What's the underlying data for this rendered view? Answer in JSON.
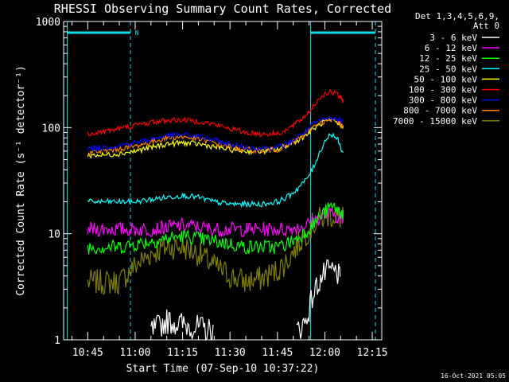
{
  "chart_data": {
    "type": "line",
    "title": "RHESSI Observing Summary Count Rates, Corrected",
    "ylabel": "Corrected Count Rate (s⁻¹ detector⁻¹)",
    "xlabel": "Start Time (07-Sep-10 10:37:22)",
    "yscale": "log",
    "ylim": [
      1,
      1000
    ],
    "xlim_minutes": [
      37.37,
      138.0
    ],
    "x_ticks": [
      "10:45",
      "11:00",
      "11:15",
      "11:30",
      "11:45",
      "12:00",
      "12:15"
    ],
    "x_tick_minutes": [
      45,
      60,
      75,
      90,
      105,
      120,
      135
    ],
    "y_ticks": [
      "1",
      "10",
      "100",
      "1000"
    ],
    "legend_header": [
      "Det 1,3,4,5,6,9,",
      "Att 0"
    ],
    "footer": "16-Oct-2021 05:05",
    "state_markers": {
      "flag_label": "N",
      "color": "#00e0e8",
      "dashed_lines_minutes": [
        58.5,
        136.0
      ],
      "solid_lines_minutes": [
        38.5,
        115.5
      ],
      "flag_bars_minutes": [
        [
          38.5,
          58.5
        ],
        [
          115.5,
          136.0
        ]
      ]
    },
    "x": [
      45,
      50,
      55,
      60,
      65,
      70,
      75,
      80,
      85,
      90,
      95,
      100,
      105,
      108,
      111,
      114,
      116,
      118,
      120,
      122,
      124,
      125,
      126
    ],
    "series": [
      {
        "name": "3 - 6 keV",
        "color": "#ffffff",
        "values": [
          null,
          null,
          null,
          null,
          1.2,
          1.5,
          1.4,
          1.3,
          1.2,
          null,
          null,
          null,
          null,
          null,
          1.2,
          1.5,
          2.5,
          3.5,
          4.2,
          4.5,
          4.2,
          3.5,
          null
        ]
      },
      {
        "name": "6 - 12 keV",
        "color": "#ff00ff",
        "values": [
          11,
          11,
          11,
          11,
          11,
          11.5,
          12,
          11.5,
          11,
          11,
          11,
          11,
          11,
          11,
          11.5,
          12,
          13,
          14,
          15,
          15.5,
          14.5,
          14,
          13
        ]
      },
      {
        "name": "12 - 25 keV",
        "color": "#00ff00",
        "values": [
          7.5,
          7.5,
          7.5,
          8,
          8.5,
          9,
          9.5,
          9,
          8.5,
          8,
          7.5,
          7.5,
          7.5,
          8,
          9,
          10.5,
          12,
          14,
          16,
          18,
          17,
          16,
          15
        ]
      },
      {
        "name": "25 - 50 keV",
        "color": "#00ffff",
        "values": [
          20,
          20,
          20,
          20,
          21,
          22,
          23,
          22,
          20,
          19,
          19,
          19,
          20,
          22,
          26,
          32,
          40,
          55,
          75,
          88,
          78,
          65,
          55
        ]
      },
      {
        "name": "50 - 100 keV",
        "color": "#ffff00",
        "values": [
          55,
          55,
          57,
          60,
          65,
          70,
          72,
          70,
          66,
          62,
          60,
          60,
          62,
          68,
          75,
          85,
          95,
          105,
          115,
          115,
          110,
          105,
          100
        ]
      },
      {
        "name": "100 - 300 keV",
        "color": "#ff0000",
        "values": [
          88,
          92,
          98,
          105,
          112,
          117,
          118,
          115,
          107,
          98,
          90,
          87,
          88,
          95,
          110,
          130,
          155,
          185,
          210,
          215,
          205,
          190,
          175
        ]
      },
      {
        "name": "300 - 800 keV",
        "color": "#0000ff",
        "values": [
          63,
          65,
          68,
          72,
          78,
          84,
          86,
          83,
          76,
          70,
          65,
          64,
          65,
          70,
          80,
          92,
          105,
          115,
          120,
          122,
          120,
          117,
          113
        ]
      },
      {
        "name": "800 - 7000 keV",
        "color": "#ff8000",
        "values": [
          58,
          60,
          63,
          67,
          73,
          80,
          82,
          78,
          72,
          66,
          62,
          61,
          62,
          67,
          76,
          88,
          100,
          110,
          115,
          115,
          112,
          108,
          105
        ]
      },
      {
        "name": "7000 - 15000 keV",
        "color": "#808000",
        "values": [
          3.5,
          3.5,
          3.5,
          5,
          6.5,
          7.5,
          7.5,
          6.5,
          5,
          4,
          3.5,
          3.8,
          4.5,
          5.5,
          7.5,
          10,
          12,
          13.5,
          14.5,
          15,
          14.5,
          14,
          13.5
        ]
      }
    ]
  }
}
